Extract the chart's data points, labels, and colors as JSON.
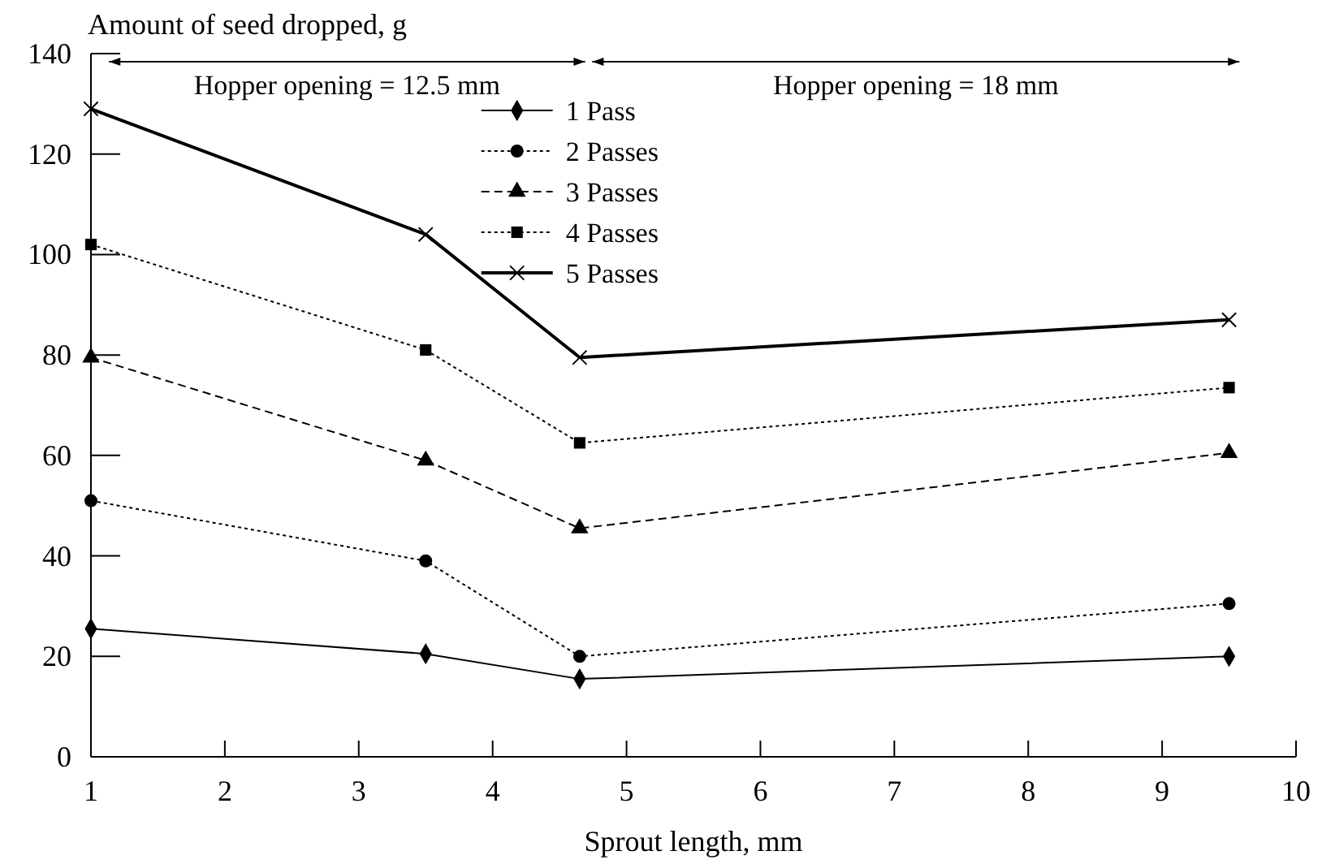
{
  "chart_data": {
    "type": "line",
    "xlabel": "Sprout length, mm",
    "ylabel": "Amount of seed dropped, g",
    "xlim": [
      1,
      10
    ],
    "xticks": [
      1,
      2,
      3,
      4,
      5,
      6,
      7,
      8,
      9,
      10
    ],
    "ylim": [
      0,
      140
    ],
    "yticks": [
      0,
      20,
      40,
      60,
      80,
      100,
      120,
      140
    ],
    "grid": false,
    "legend": "top",
    "annotations": [
      "Hopper opening = 12.5 mm",
      "Hopper opening = 18 mm"
    ],
    "series": [
      {
        "name": "1 Pass",
        "color": "#000000",
        "marker": "diamond",
        "line_style": "solid",
        "x": [
          1,
          3.5,
          4.65,
          9.5
        ],
        "values": [
          25.5,
          20.5,
          15.5,
          20
        ]
      },
      {
        "name": "2 Passes",
        "color": "#000000",
        "marker": "circle",
        "line_style": "dotted",
        "x": [
          1,
          3.5,
          4.65,
          9.5
        ],
        "values": [
          51,
          39,
          20,
          30.5
        ]
      },
      {
        "name": "3 Passes",
        "color": "#000000",
        "marker": "triangle",
        "line_style": "dashed",
        "x": [
          1,
          3.5,
          4.65,
          9.5
        ],
        "values": [
          79.5,
          59,
          45.5,
          60.5
        ]
      },
      {
        "name": "4 Passes",
        "color": "#000000",
        "marker": "square",
        "line_style": "dotted",
        "x": [
          1,
          3.5,
          4.65,
          9.5
        ],
        "values": [
          102,
          81,
          62.5,
          73.5
        ]
      },
      {
        "name": "5 Passes",
        "color": "#000000",
        "marker": "cross",
        "line_style": "solid",
        "x": [
          1,
          3.5,
          4.65,
          9.5
        ],
        "values": [
          129,
          104,
          79.5,
          87
        ]
      }
    ]
  }
}
